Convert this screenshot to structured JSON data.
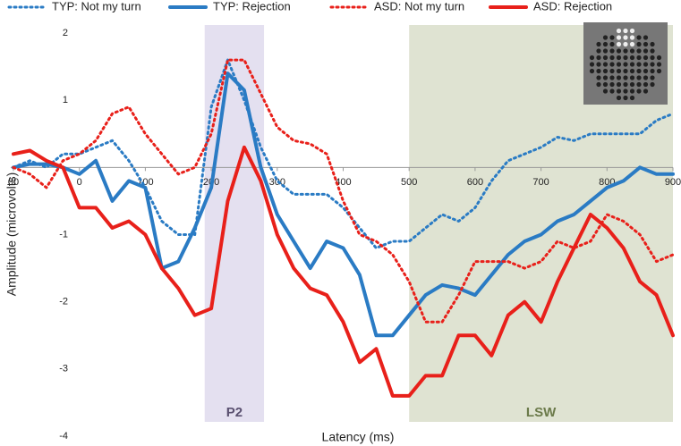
{
  "chart_data": {
    "type": "line",
    "x_label": "Latency (ms)",
    "y_label": "Amplitude (microvolts)",
    "x": [
      -100,
      -75,
      -50,
      -25,
      0,
      25,
      50,
      75,
      100,
      125,
      150,
      175,
      200,
      225,
      250,
      275,
      300,
      325,
      350,
      375,
      400,
      425,
      450,
      475,
      500,
      525,
      550,
      575,
      600,
      625,
      650,
      675,
      700,
      725,
      750,
      775,
      800,
      825,
      850,
      875,
      900
    ],
    "series": [
      {
        "name": "TYP: Not my turn",
        "color": "#2a7bc4",
        "dash": "dotted",
        "values": [
          0.0,
          0.1,
          0.0,
          0.2,
          0.2,
          0.3,
          0.4,
          0.1,
          -0.3,
          -0.8,
          -1.0,
          -1.0,
          0.9,
          1.6,
          1.0,
          0.3,
          -0.2,
          -0.4,
          -0.4,
          -0.4,
          -0.6,
          -0.9,
          -1.2,
          -1.1,
          -1.1,
          -0.9,
          -0.7,
          -0.8,
          -0.6,
          -0.2,
          0.1,
          0.2,
          0.3,
          0.45,
          0.4,
          0.5,
          0.5,
          0.5,
          0.5,
          0.7,
          0.8
        ]
      },
      {
        "name": "TYP: Rejection",
        "color": "#2a7bc4",
        "dash": "solid",
        "values": [
          0.0,
          0.05,
          0.05,
          0.0,
          -0.1,
          0.1,
          -0.5,
          -0.2,
          -0.3,
          -1.5,
          -1.4,
          -0.9,
          -0.3,
          1.4,
          1.15,
          0.0,
          -0.7,
          -1.1,
          -1.5,
          -1.1,
          -1.2,
          -1.6,
          -2.5,
          -2.5,
          -2.2,
          -1.9,
          -1.75,
          -1.8,
          -1.9,
          -1.6,
          -1.3,
          -1.1,
          -1.0,
          -0.8,
          -0.7,
          -0.5,
          -0.3,
          -0.2,
          0.0,
          -0.1,
          -0.1
        ]
      },
      {
        "name": "ASD: Not my turn",
        "color": "#e8201a",
        "dash": "dotted",
        "values": [
          0.0,
          -0.1,
          -0.3,
          0.1,
          0.2,
          0.4,
          0.8,
          0.9,
          0.5,
          0.2,
          -0.1,
          0.0,
          0.5,
          1.6,
          1.6,
          1.1,
          0.6,
          0.4,
          0.35,
          0.2,
          -0.5,
          -1.0,
          -1.1,
          -1.3,
          -1.7,
          -2.3,
          -2.3,
          -1.9,
          -1.4,
          -1.4,
          -1.4,
          -1.5,
          -1.4,
          -1.1,
          -1.2,
          -1.1,
          -0.7,
          -0.8,
          -1.0,
          -1.4,
          -1.3
        ]
      },
      {
        "name": "ASD: Rejection",
        "color": "#e8201a",
        "dash": "solid",
        "values": [
          0.2,
          0.25,
          0.1,
          0.0,
          -0.6,
          -0.6,
          -0.9,
          -0.8,
          -1.0,
          -1.5,
          -1.8,
          -2.2,
          -2.1,
          -0.5,
          0.3,
          -0.2,
          -1.0,
          -1.5,
          -1.8,
          -1.9,
          -2.3,
          -2.9,
          -2.7,
          -3.4,
          -3.4,
          -3.1,
          -3.1,
          -2.5,
          -2.5,
          -2.8,
          -2.2,
          -2.0,
          -2.3,
          -1.7,
          -1.2,
          -0.7,
          -0.9,
          -1.2,
          -1.7,
          -1.9,
          -2.5
        ]
      }
    ],
    "regions": [
      {
        "label": "P2",
        "x": [
          190,
          280
        ],
        "color": "#e4e0f0",
        "label_color": "#5a5070"
      },
      {
        "label": "LSW",
        "x": [
          500,
          900
        ],
        "color": "#dfe3d2",
        "label_color": "#6b7a4a"
      }
    ],
    "xlim": [
      -100,
      900
    ],
    "xticks": [
      {
        "value": -100,
        "label": "00"
      },
      0,
      100,
      200,
      300,
      400,
      500,
      600,
      700,
      800,
      900
    ],
    "ylim": [
      -4,
      2
    ],
    "yticks": [
      -4,
      -3,
      -2,
      -1,
      1,
      2
    ],
    "legend": "top"
  }
}
